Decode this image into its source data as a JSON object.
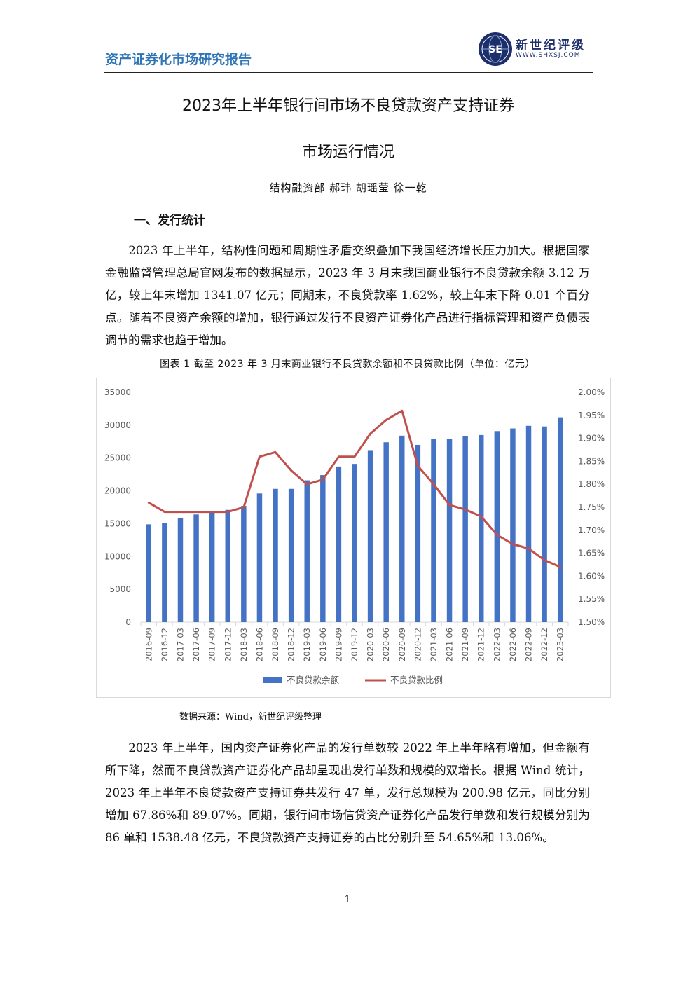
{
  "header": {
    "report_title": "资产证券化市场研究报告",
    "logo_name": "新世纪评级",
    "logo_url": "WWW.SHXSJ.COM",
    "logo_badge_text": "SE",
    "logo_badge_color": "#1c2f6b"
  },
  "document": {
    "title_line1": "2023年上半年银行间市场不良贷款资产支持证券",
    "title_line2": "市场运行情况",
    "authors": "结构融资部 郝玮 胡瑶莹 徐一乾",
    "section_heading": "一、发行统计",
    "paragraph1": "2023 年上半年，结构性问题和周期性矛盾交织叠加下我国经济增长压力加大。根据国家金融监督管理总局官网发布的数据显示，2023 年 3 月末我国商业银行不良贷款余额 3.12 万亿，较上年末增加 1341.07 亿元；同期末，不良贷款率 1.62%，较上年末下降 0.01 个百分点。随着不良资产余额的增加，银行通过发行不良资产证券化产品进行指标管理和资产负债表调节的需求也趋于增加。",
    "figure_caption": "图表 1 截至 2023 年 3 月末商业银行不良贷款余额和不良贷款比例（单位：亿元）",
    "source_note": "数据来源：Wind，新世纪评级整理",
    "paragraph2": "2023 年上半年，国内资产证券化产品的发行单数较 2022 年上半年略有增加，但金额有所下降，然而不良贷款资产证券化产品却呈现出发行单数和规模的双增长。根据 Wind 统计，2023 年上半年不良贷款资产支持证券共发行 47 单，发行总规模为 200.98 亿元，同比分别增加 67.86%和 89.07%。同期，银行间市场信贷资产证券化产品发行单数和发行规模分别为 86 单和 1538.48 亿元，不良贷款资产支持证券的占比分别升至 54.65%和 13.06%。",
    "page_number": "1"
  },
  "chart_data": {
    "type": "bar",
    "title": "",
    "categories": [
      "2016-09",
      "2016-12",
      "2017-03",
      "2017-06",
      "2017-09",
      "2017-12",
      "2018-03",
      "2018-06",
      "2018-09",
      "2018-12",
      "2019-03",
      "2019-06",
      "2019-09",
      "2019-12",
      "2020-03",
      "2020-06",
      "2020-09",
      "2020-12",
      "2021-03",
      "2021-06",
      "2021-09",
      "2021-12",
      "2022-03",
      "2022-06",
      "2022-09",
      "2022-12",
      "2023-03"
    ],
    "series": [
      {
        "name": "不良贷款余额",
        "type": "bar",
        "axis": "left",
        "color": "#4472c4",
        "values": [
          14900,
          15100,
          15800,
          16400,
          16700,
          17100,
          17700,
          19600,
          20300,
          20300,
          21600,
          22400,
          23700,
          24100,
          26200,
          27400,
          28400,
          27000,
          27900,
          27900,
          28300,
          28500,
          29100,
          29500,
          29900,
          29800,
          31200
        ]
      },
      {
        "name": "不良贷款比例",
        "type": "line",
        "axis": "right",
        "color": "#c0504d",
        "values": [
          1.76,
          1.74,
          1.74,
          1.74,
          1.74,
          1.74,
          1.75,
          1.86,
          1.87,
          1.83,
          1.8,
          1.81,
          1.86,
          1.86,
          1.91,
          1.94,
          1.96,
          1.84,
          1.8,
          1.755,
          1.745,
          1.73,
          1.69,
          1.67,
          1.66,
          1.635,
          1.62
        ]
      }
    ],
    "left_axis": {
      "ylim": [
        0,
        35000
      ],
      "ticks": [
        "0",
        "5000",
        "10000",
        "15000",
        "20000",
        "25000",
        "30000",
        "35000"
      ]
    },
    "right_axis": {
      "ylim": [
        1.5,
        2.0
      ],
      "ticks": [
        "1.50%",
        "1.55%",
        "1.60%",
        "1.65%",
        "1.70%",
        "1.75%",
        "1.80%",
        "1.85%",
        "1.90%",
        "1.95%",
        "2.00%"
      ]
    },
    "grid": false,
    "legend": "bottom"
  }
}
